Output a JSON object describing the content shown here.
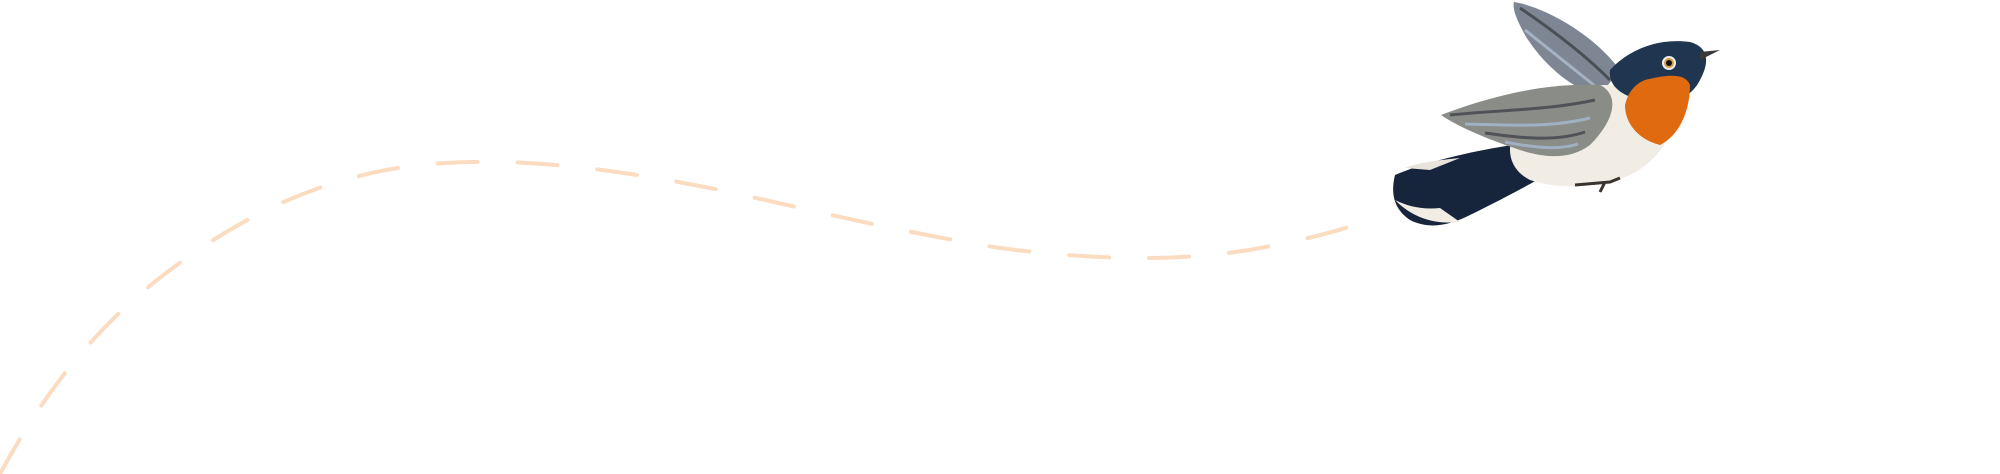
{
  "colors": {
    "background": "#ffffff",
    "flight_path": "#fbdcc0",
    "bird_throat": "#e06a10",
    "bird_head": "#1f3550",
    "bird_wing": "#8a8c88",
    "bird_belly": "#f1ede4",
    "bird_tail": "#16233a"
  },
  "icons": {
    "bird": "bird-illustration",
    "path": "dashed-flight-path"
  }
}
